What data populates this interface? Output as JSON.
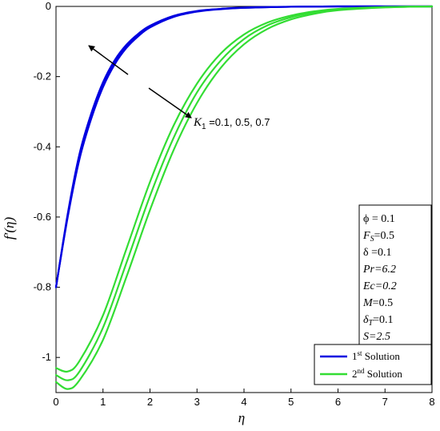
{
  "chart_data": {
    "type": "line",
    "xlabel": "η",
    "ylabel": "f′(η)",
    "xlim": [
      0,
      8
    ],
    "ylim": [
      -1.1,
      0
    ],
    "xticks": [
      "0",
      "1",
      "2",
      "3",
      "4",
      "5",
      "6",
      "7",
      "8"
    ],
    "yticks": [
      "0",
      "-0.2",
      "-0.4",
      "-0.6",
      "-0.8",
      "-1"
    ],
    "ytick_values": [
      0,
      -0.2,
      -0.4,
      -0.6,
      -0.8,
      -1
    ],
    "legend": {
      "placement": "bottom-right",
      "entries": [
        {
          "num": "1",
          "sup": "st",
          "text": " Solution",
          "color": "#0000e0"
        },
        {
          "num": "2",
          "sup": "nd",
          "text": " Solution",
          "color": "#33dd33"
        }
      ]
    },
    "params": {
      "phi": "ϕ = 0.1",
      "fs_sym": "F",
      "fs_sub": "S",
      "fs_val": "=0.5",
      "delta": "δ =0.1",
      "pr": "Pr=6.2",
      "ec": "Ec=0.2",
      "m_sym": "M",
      "m_val": "=0.5",
      "dt_sym": "δ",
      "dt_sub": "T",
      "dt_val": "=0.1",
      "s": "S=2.5"
    },
    "annotation": {
      "sym": "K",
      "sub": "1",
      "text": " =0.1, 0.5, 0.7"
    },
    "series": [
      {
        "solution": "1st",
        "k1": "0.1",
        "color": "#0000e0",
        "x": [
          0,
          0.25,
          0.5,
          0.75,
          1,
          1.25,
          1.5,
          1.75,
          2,
          2.5,
          3,
          3.5,
          4,
          5,
          6,
          8
        ],
        "y": [
          -0.8,
          -0.6,
          -0.435,
          -0.32,
          -0.23,
          -0.165,
          -0.118,
          -0.085,
          -0.06,
          -0.03,
          -0.015,
          -0.008,
          -0.004,
          -0.001,
          0,
          0
        ]
      },
      {
        "solution": "1st",
        "k1": "0.5",
        "color": "#0000e0",
        "x": [
          0,
          0.25,
          0.5,
          0.75,
          1,
          1.25,
          1.5,
          1.75,
          2,
          2.5,
          3,
          3.5,
          4,
          5,
          6,
          8
        ],
        "y": [
          -0.8,
          -0.595,
          -0.428,
          -0.312,
          -0.223,
          -0.159,
          -0.114,
          -0.081,
          -0.058,
          -0.029,
          -0.014,
          -0.007,
          -0.004,
          -0.001,
          0,
          0
        ]
      },
      {
        "solution": "1st",
        "k1": "0.7",
        "color": "#0000e0",
        "x": [
          0,
          0.25,
          0.5,
          0.75,
          1,
          1.25,
          1.5,
          1.75,
          2,
          2.5,
          3,
          3.5,
          4,
          5,
          6,
          8
        ],
        "y": [
          -0.8,
          -0.59,
          -0.42,
          -0.305,
          -0.216,
          -0.153,
          -0.109,
          -0.078,
          -0.055,
          -0.027,
          -0.013,
          -0.007,
          -0.003,
          -0.001,
          0,
          0
        ]
      },
      {
        "solution": "2nd",
        "k1": "0.1",
        "color": "#33dd33",
        "x": [
          0,
          0.25,
          0.5,
          1,
          1.5,
          2,
          2.5,
          3,
          3.5,
          4,
          4.5,
          5,
          5.5,
          6,
          7,
          8
        ],
        "y": [
          -1.03,
          -1.04,
          -1.01,
          -0.88,
          -0.69,
          -0.5,
          -0.34,
          -0.22,
          -0.135,
          -0.08,
          -0.046,
          -0.026,
          -0.014,
          -0.007,
          -0.002,
          0
        ]
      },
      {
        "solution": "2nd",
        "k1": "0.5",
        "color": "#33dd33",
        "x": [
          0,
          0.25,
          0.5,
          1,
          1.5,
          2,
          2.5,
          3,
          3.5,
          4,
          4.5,
          5,
          5.5,
          6,
          7,
          8
        ],
        "y": [
          -1.05,
          -1.065,
          -1.04,
          -0.915,
          -0.73,
          -0.54,
          -0.375,
          -0.245,
          -0.155,
          -0.093,
          -0.054,
          -0.031,
          -0.017,
          -0.009,
          -0.002,
          0
        ]
      },
      {
        "solution": "2nd",
        "k1": "0.7",
        "color": "#33dd33",
        "x": [
          0,
          0.25,
          0.5,
          1,
          1.5,
          2,
          2.5,
          3,
          3.5,
          4,
          4.5,
          5,
          5.5,
          6,
          7,
          8
        ],
        "y": [
          -1.07,
          -1.09,
          -1.065,
          -0.95,
          -0.77,
          -0.58,
          -0.41,
          -0.275,
          -0.176,
          -0.108,
          -0.064,
          -0.037,
          -0.021,
          -0.011,
          -0.003,
          0
        ]
      }
    ]
  }
}
